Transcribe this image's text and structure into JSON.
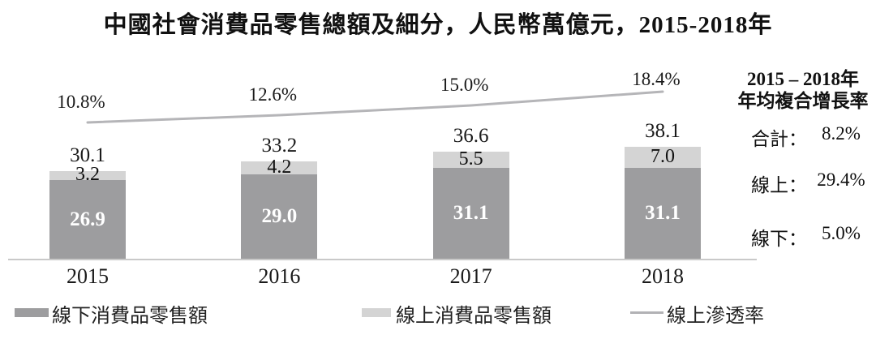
{
  "title": "中國社會消費品零售總額及細分，人民幣萬億元，2015-2018年",
  "chart_data": {
    "type": "bar",
    "stacked": true,
    "categories": [
      "2015",
      "2016",
      "2017",
      "2018"
    ],
    "series": [
      {
        "name": "線下消費品零售額",
        "values": [
          26.9,
          29.0,
          31.1,
          31.1
        ],
        "color": "#9d9d9f"
      },
      {
        "name": "線上消費品零售額",
        "values": [
          3.2,
          4.2,
          5.5,
          7.0
        ],
        "color": "#d4d4d4"
      }
    ],
    "totals": [
      30.1,
      33.2,
      36.6,
      38.1
    ],
    "line_series": {
      "name": "線上滲透率",
      "values_pct": [
        10.8,
        12.6,
        15.0,
        18.4
      ],
      "color": "#b5b5b8"
    },
    "unit": "人民幣萬億元",
    "ylim": [
      0,
      40
    ],
    "grid": false,
    "legend_position": "bottom"
  },
  "side_panel": {
    "heading_line1": "2015 – 2018年",
    "heading_line2": "年均複合增長率",
    "rows": [
      {
        "label": "合計：",
        "value": "8.2%"
      },
      {
        "label": "線上：",
        "value": "29.4%"
      },
      {
        "label": "線下：",
        "value": "5.0%"
      }
    ]
  },
  "legend": [
    {
      "swatch": "box",
      "color": "#9d9d9f",
      "label": "線下消費品零售額"
    },
    {
      "swatch": "box",
      "color": "#d4d4d4",
      "label": "線上消費品零售額"
    },
    {
      "swatch": "line",
      "color": "#b2b2b5",
      "label": "線上滲透率"
    }
  ]
}
